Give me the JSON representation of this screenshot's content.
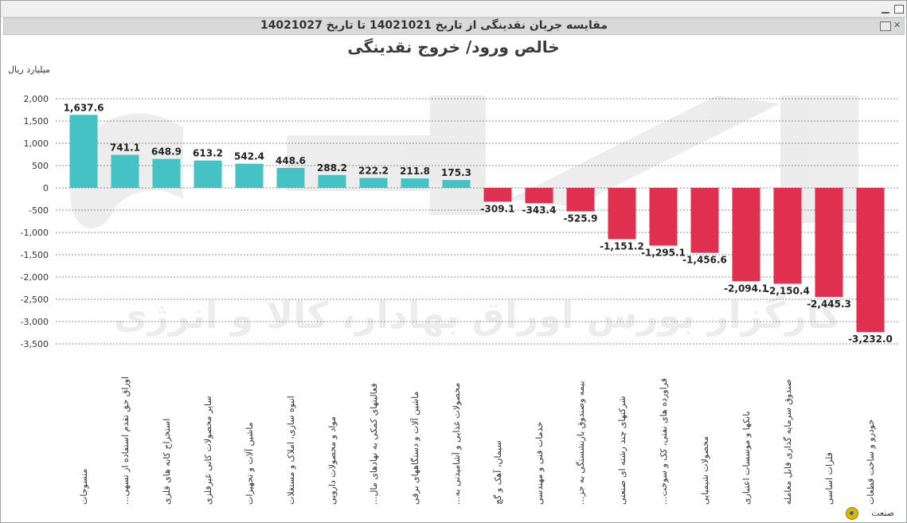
{
  "window": {
    "header": "مقایسه جریان نقدینگی از تاریخ 14021021 تا تاریخ 14021027"
  },
  "watermark": {
    "logo_text": "آگاه",
    "caption": "کارگزار بورس اوراق بهادار، کالا و انرژی"
  },
  "chart_data": {
    "type": "bar",
    "title": "خالص ورود/ خروج نقدینگی",
    "ylabel": "میلیارد ریال",
    "xlabel": "صنعت",
    "ylim": [
      -3500,
      2000
    ],
    "yticks": [
      2000,
      1500,
      1000,
      500,
      0,
      -500,
      -1000,
      -1500,
      -2000,
      -2500,
      -3000,
      -3500
    ],
    "ytick_labels": [
      "2,000",
      "1,500",
      "1,000",
      "500",
      "0",
      "-500",
      "-1,000",
      "-1,500",
      "-2,000",
      "-2,500",
      "-3,000",
      "-3,500"
    ],
    "grid": true,
    "positive_color": "#45c3c4",
    "negative_color": "#e0304f",
    "categories": [
      "منسوجات",
      "اوراق حق تقدم استفاده از تسهی...",
      "استخراج کانه های فلزی",
      "سایر محصولات کانی غیرفلزی",
      "ماشین آلات و تجهیزات",
      "انبوه سازی، املاک و مستغلات",
      "مواد و محصولات دارویی",
      "فعالیتهای کمکی به نهادهای مال...",
      "ماشین آلات و دستگاههای برقی",
      "محصولات غذایی و آشامیدنی به...",
      "سیمان، آهک و گچ",
      "خدمات فنی و مهندسی",
      "بیمه وصندوق بازنشستگی به جز...",
      "شرکتهای چند رشته ای صنعتی",
      "فراورده های نفتی، کک و سوخت...",
      "محصولات شیمیایی",
      "بانکها و موسسات اعتباری",
      "صندوق سرمایه گذاری قابل معامله",
      "فلزات اساسی",
      "خودرو و ساخت قطعات"
    ],
    "values": [
      1637.6,
      741.1,
      648.9,
      613.2,
      542.4,
      448.6,
      288.2,
      222.2,
      211.8,
      175.3,
      -309.1,
      -343.4,
      -525.9,
      -1151.2,
      -1295.1,
      -1456.6,
      -2094.1,
      -2150.4,
      -2445.3,
      -3232.0
    ],
    "value_labels": [
      "1,637.6",
      "741.1",
      "648.9",
      "613.2",
      "542.4",
      "448.6",
      "288.2",
      "222.2",
      "211.8",
      "175.3",
      "-309.1",
      "-343.4",
      "-525.9",
      "-1,151.2",
      "-1,295.1",
      "-1,456.6",
      "-2,094.1",
      "-2,150.4",
      "-2,445.3",
      "-3,232.0"
    ]
  }
}
